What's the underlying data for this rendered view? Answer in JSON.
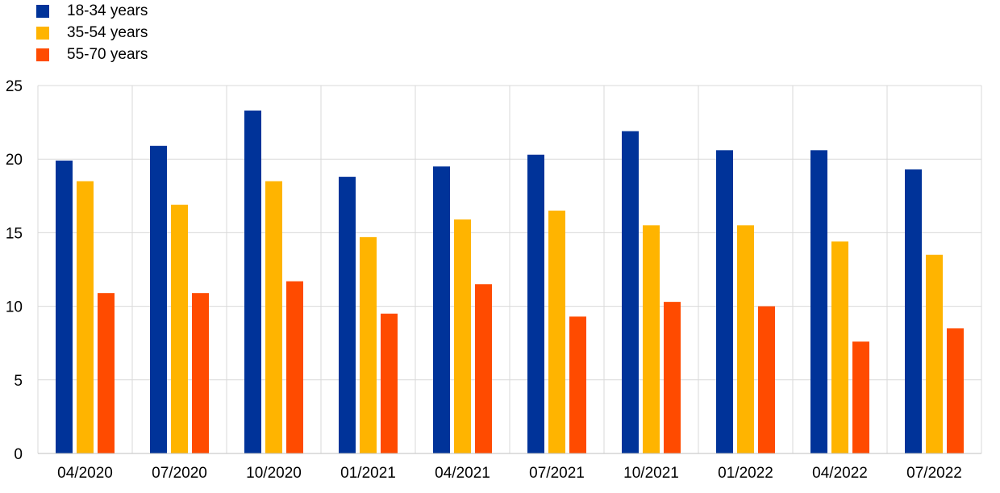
{
  "chart_data": {
    "type": "bar",
    "categories": [
      "04/2020",
      "07/2020",
      "10/2020",
      "01/2021",
      "04/2021",
      "07/2021",
      "10/2021",
      "01/2022",
      "04/2022",
      "07/2022"
    ],
    "series": [
      {
        "name": "18-34 years",
        "color": "#003399",
        "values": [
          19.9,
          20.9,
          23.3,
          18.8,
          19.5,
          20.3,
          21.9,
          20.6,
          20.6,
          19.3
        ]
      },
      {
        "name": "35-54 years",
        "color": "#ffb400",
        "values": [
          18.5,
          16.9,
          18.5,
          14.7,
          15.9,
          16.5,
          15.5,
          15.5,
          14.4,
          13.5
        ]
      },
      {
        "name": "55-70 years",
        "color": "#ff4b00",
        "values": [
          10.9,
          10.9,
          11.7,
          9.5,
          11.5,
          9.3,
          10.3,
          10.0,
          7.6,
          8.5
        ]
      }
    ],
    "yticks": [
      "0",
      "5",
      "10",
      "15",
      "20",
      "25"
    ],
    "ylim": [
      0,
      25
    ],
    "grid": true,
    "legend_position": "top-left"
  }
}
